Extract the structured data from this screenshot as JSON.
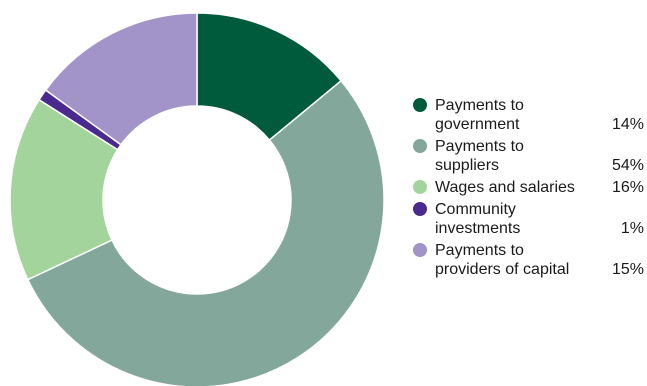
{
  "chart_data": {
    "type": "pie",
    "style": "donut",
    "legend_position": "right",
    "series": [
      {
        "name": "Payments to government",
        "label_lines": [
          "Payments to",
          "government"
        ],
        "value": 14,
        "display": "14%",
        "color": "#005a3c"
      },
      {
        "name": "Payments to suppliers",
        "label_lines": [
          "Payments to",
          "suppliers"
        ],
        "value": 54,
        "display": "54%",
        "color": "#83a89b"
      },
      {
        "name": "Wages and salaries",
        "label_lines": [
          "Wages and salaries"
        ],
        "value": 16,
        "display": "16%",
        "color": "#a3d49c"
      },
      {
        "name": "Community investments",
        "label_lines": [
          "Community",
          "investments"
        ],
        "value": 1,
        "display": "1%",
        "color": "#4b2a8f"
      },
      {
        "name": "Payments to providers of capital",
        "label_lines": [
          "Payments to",
          "providers of capital"
        ],
        "value": 15,
        "display": "15%",
        "color": "#a294c8"
      }
    ]
  }
}
